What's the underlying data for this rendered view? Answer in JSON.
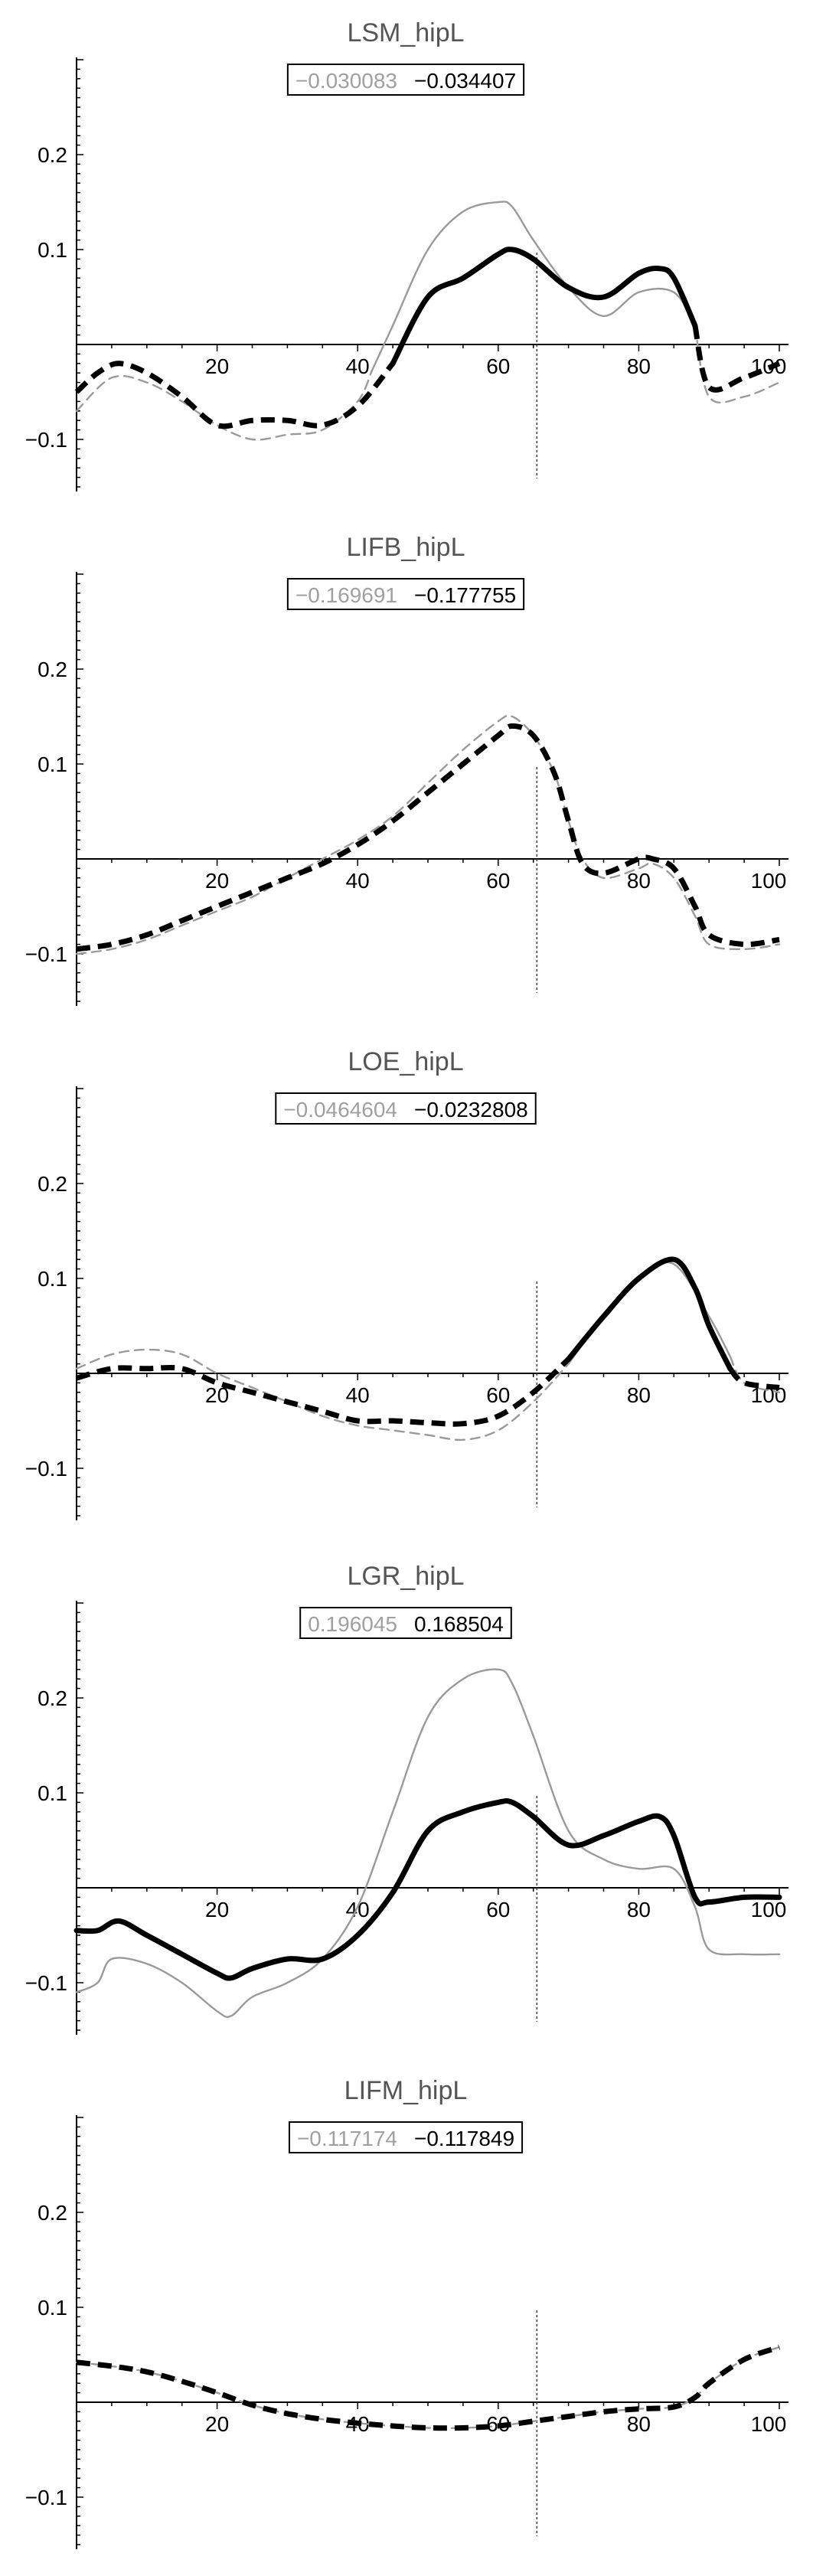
{
  "chart_data": [
    {
      "type": "line",
      "title": "LSM_hipL",
      "readout": {
        "gray": "−0.030083",
        "black": "−0.034407"
      },
      "xlim": [
        0,
        100
      ],
      "ylim": [
        -0.16,
        0.3
      ],
      "xticks": [
        {
          "v": 20,
          "label": "20"
        },
        {
          "v": 40,
          "label": "40"
        },
        {
          "v": 60,
          "label": "60"
        },
        {
          "v": 80,
          "label": "80"
        },
        {
          "v": 100,
          "label": "100"
        }
      ],
      "yticks": [
        {
          "v": 0.2,
          "label": "0.2"
        },
        {
          "v": 0.1,
          "label": "0.1"
        },
        {
          "v": -0.1,
          "label": "−0.1"
        }
      ],
      "cursor_x": 65.5,
      "series": [
        {
          "color": "#9a9a9a",
          "x": [
            0,
            5,
            10,
            15,
            20,
            25,
            30,
            35,
            40,
            45,
            50,
            55,
            60,
            62,
            65,
            70,
            75,
            80,
            85,
            88,
            90,
            95,
            100
          ],
          "y": [
            -0.07,
            -0.035,
            -0.04,
            -0.06,
            -0.085,
            -0.1,
            -0.095,
            -0.09,
            -0.06,
            0.02,
            0.1,
            0.14,
            0.15,
            0.145,
            0.11,
            0.06,
            0.03,
            0.055,
            0.055,
            0.02,
            -0.055,
            -0.055,
            -0.04
          ],
          "segments": [
            {
              "from": 0,
              "to": 42,
              "style": "dashed"
            },
            {
              "from": 42,
              "to": 88,
              "style": "solid"
            },
            {
              "from": 88,
              "to": 100,
              "style": "dashed"
            }
          ]
        },
        {
          "color": "#000000",
          "x": [
            0,
            3,
            6,
            10,
            15,
            20,
            25,
            30,
            35,
            40,
            45,
            50,
            55,
            60,
            62,
            65,
            70,
            75,
            80,
            83,
            85,
            88,
            90,
            95,
            100
          ],
          "y": [
            -0.05,
            -0.03,
            -0.02,
            -0.03,
            -0.055,
            -0.085,
            -0.08,
            -0.08,
            -0.085,
            -0.065,
            -0.02,
            0.05,
            0.07,
            0.095,
            0.1,
            0.09,
            0.06,
            0.05,
            0.075,
            0.08,
            0.07,
            0.02,
            -0.045,
            -0.035,
            -0.02
          ],
          "segments": [
            {
              "from": 0,
              "to": 45,
              "style": "dashed"
            },
            {
              "from": 45,
              "to": 88,
              "style": "solid"
            },
            {
              "from": 88,
              "to": 100,
              "style": "dashed"
            }
          ]
        }
      ]
    },
    {
      "type": "line",
      "title": "LIFB_hipL",
      "readout": {
        "gray": "−0.169691",
        "black": "−0.177755"
      },
      "xlim": [
        0,
        100
      ],
      "ylim": [
        -0.16,
        0.3
      ],
      "xticks": [
        {
          "v": 20,
          "label": "20"
        },
        {
          "v": 40,
          "label": "40"
        },
        {
          "v": 60,
          "label": "60"
        },
        {
          "v": 80,
          "label": "80"
        },
        {
          "v": 100,
          "label": "100"
        }
      ],
      "yticks": [
        {
          "v": 0.2,
          "label": "0.2"
        },
        {
          "v": 0.1,
          "label": "0.1"
        },
        {
          "v": -0.1,
          "label": "−0.1"
        }
      ],
      "cursor_x": 65.5,
      "series": [
        {
          "color": "#9a9a9a",
          "x": [
            0,
            5,
            10,
            15,
            20,
            25,
            30,
            35,
            40,
            45,
            50,
            55,
            60,
            62,
            65,
            68,
            70,
            72,
            75,
            80,
            82,
            85,
            88,
            90,
            95,
            100
          ],
          "y": [
            -0.1,
            -0.095,
            -0.085,
            -0.07,
            -0.055,
            -0.04,
            -0.02,
            0.0,
            0.02,
            0.045,
            0.08,
            0.115,
            0.145,
            0.15,
            0.13,
            0.09,
            0.04,
            0.0,
            -0.02,
            -0.01,
            -0.005,
            -0.02,
            -0.06,
            -0.09,
            -0.095,
            -0.09
          ],
          "segments": [
            {
              "from": 0,
              "to": 100,
              "style": "dashed"
            }
          ]
        },
        {
          "color": "#000000",
          "x": [
            0,
            5,
            10,
            15,
            20,
            25,
            30,
            35,
            40,
            45,
            50,
            55,
            60,
            62,
            65,
            68,
            70,
            72,
            75,
            80,
            82,
            85,
            88,
            90,
            95,
            100
          ],
          "y": [
            -0.095,
            -0.09,
            -0.08,
            -0.065,
            -0.05,
            -0.035,
            -0.02,
            -0.005,
            0.015,
            0.04,
            0.07,
            0.1,
            0.13,
            0.14,
            0.13,
            0.09,
            0.04,
            -0.005,
            -0.015,
            0.0,
            0.0,
            -0.01,
            -0.05,
            -0.08,
            -0.09,
            -0.085
          ],
          "segments": [
            {
              "from": 0,
              "to": 100,
              "style": "dashed"
            }
          ]
        }
      ]
    },
    {
      "type": "line",
      "title": "LOE_hipL",
      "readout": {
        "gray": "−0.0464604",
        "black": "−0.0232808"
      },
      "xlim": [
        0,
        100
      ],
      "ylim": [
        -0.16,
        0.3
      ],
      "xticks": [
        {
          "v": 20,
          "label": "20"
        },
        {
          "v": 40,
          "label": "40"
        },
        {
          "v": 60,
          "label": "60"
        },
        {
          "v": 80,
          "label": "80"
        },
        {
          "v": 100,
          "label": "100"
        }
      ],
      "yticks": [
        {
          "v": 0.2,
          "label": "0.2"
        },
        {
          "v": 0.1,
          "label": "0.1"
        },
        {
          "v": -0.1,
          "label": "−0.1"
        }
      ],
      "cursor_x": 65.5,
      "series": [
        {
          "color": "#9a9a9a",
          "x": [
            0,
            5,
            10,
            15,
            20,
            25,
            30,
            35,
            40,
            45,
            50,
            55,
            60,
            65,
            70,
            75,
            80,
            85,
            90,
            95,
            100
          ],
          "y": [
            0.005,
            0.02,
            0.025,
            0.02,
            0.0,
            -0.015,
            -0.03,
            -0.045,
            -0.055,
            -0.06,
            -0.065,
            -0.07,
            -0.06,
            -0.03,
            0.01,
            0.06,
            0.1,
            0.115,
            0.06,
            -0.01,
            -0.02
          ],
          "segments": [
            {
              "from": 0,
              "to": 70,
              "style": "dashed"
            },
            {
              "from": 70,
              "to": 93,
              "style": "solid"
            },
            {
              "from": 93,
              "to": 100,
              "style": "dashed"
            }
          ]
        },
        {
          "color": "#000000",
          "x": [
            0,
            5,
            10,
            15,
            20,
            25,
            30,
            35,
            40,
            45,
            50,
            55,
            60,
            65,
            70,
            75,
            80,
            85,
            88,
            90,
            93,
            95,
            100
          ],
          "y": [
            -0.005,
            0.005,
            0.005,
            0.005,
            -0.01,
            -0.02,
            -0.03,
            -0.04,
            -0.05,
            -0.05,
            -0.052,
            -0.053,
            -0.045,
            -0.02,
            0.015,
            0.06,
            0.1,
            0.12,
            0.09,
            0.05,
            0.005,
            -0.01,
            -0.015
          ],
          "segments": [
            {
              "from": 0,
              "to": 70,
              "style": "dashed"
            },
            {
              "from": 70,
              "to": 93,
              "style": "solid"
            },
            {
              "from": 93,
              "to": 100,
              "style": "dashed"
            }
          ]
        }
      ]
    },
    {
      "type": "line",
      "title": "LGR_hipL",
      "readout": {
        "gray": "0.196045",
        "black": "0.168504"
      },
      "xlim": [
        0,
        100
      ],
      "ylim": [
        -0.16,
        0.3
      ],
      "xticks": [
        {
          "v": 20,
          "label": "20"
        },
        {
          "v": 40,
          "label": "40"
        },
        {
          "v": 60,
          "label": "60"
        },
        {
          "v": 80,
          "label": "80"
        },
        {
          "v": 100,
          "label": "100"
        }
      ],
      "yticks": [
        {
          "v": 0.2,
          "label": "0.2"
        },
        {
          "v": 0.1,
          "label": "0.1"
        },
        {
          "v": -0.1,
          "label": "−0.1"
        }
      ],
      "cursor_x": 65.5,
      "series": [
        {
          "color": "#9a9a9a",
          "x": [
            0,
            3,
            5,
            10,
            15,
            20,
            22,
            25,
            30,
            35,
            40,
            45,
            50,
            55,
            60,
            62,
            65,
            70,
            75,
            80,
            85,
            88,
            90,
            95,
            100
          ],
          "y": [
            -0.11,
            -0.1,
            -0.075,
            -0.08,
            -0.1,
            -0.13,
            -0.135,
            -0.115,
            -0.1,
            -0.075,
            -0.02,
            0.08,
            0.18,
            0.22,
            0.23,
            0.215,
            0.16,
            0.06,
            0.03,
            0.02,
            0.02,
            -0.02,
            -0.065,
            -0.07,
            -0.07
          ],
          "segments": [
            {
              "from": 0,
              "to": 100,
              "style": "solid"
            }
          ]
        },
        {
          "color": "#000000",
          "x": [
            0,
            3,
            6,
            10,
            15,
            20,
            22,
            25,
            30,
            35,
            40,
            45,
            50,
            55,
            60,
            62,
            65,
            70,
            75,
            80,
            83,
            85,
            88,
            90,
            95,
            100
          ],
          "y": [
            -0.045,
            -0.045,
            -0.035,
            -0.05,
            -0.07,
            -0.09,
            -0.095,
            -0.085,
            -0.075,
            -0.075,
            -0.05,
            -0.005,
            0.06,
            0.08,
            0.09,
            0.09,
            0.075,
            0.045,
            0.055,
            0.07,
            0.075,
            0.055,
            -0.01,
            -0.015,
            -0.01,
            -0.01
          ],
          "segments": [
            {
              "from": 0,
              "to": 100,
              "style": "solid"
            }
          ]
        }
      ]
    },
    {
      "type": "line",
      "title": "LIFM_hipL",
      "readout": {
        "gray": "−0.117174",
        "black": "−0.117849"
      },
      "xlim": [
        0,
        100
      ],
      "ylim": [
        -0.16,
        0.3
      ],
      "xticks": [
        {
          "v": 20,
          "label": "20"
        },
        {
          "v": 40,
          "label": "40"
        },
        {
          "v": 60,
          "label": "60"
        },
        {
          "v": 80,
          "label": "80"
        },
        {
          "v": 100,
          "label": "100"
        }
      ],
      "yticks": [
        {
          "v": 0.2,
          "label": "0.2"
        },
        {
          "v": 0.1,
          "label": "0.1"
        },
        {
          "v": -0.1,
          "label": "−0.1"
        }
      ],
      "cursor_x": 65.5,
      "series": [
        {
          "color": "#9a9a9a",
          "x": [
            0,
            5,
            10,
            15,
            20,
            25,
            30,
            35,
            40,
            45,
            50,
            55,
            60,
            65,
            70,
            75,
            80,
            85,
            88,
            90,
            95,
            100
          ],
          "y": [
            0.042,
            0.038,
            0.032,
            0.022,
            0.01,
            -0.003,
            -0.012,
            -0.018,
            -0.022,
            -0.025,
            -0.027,
            -0.027,
            -0.025,
            -0.02,
            -0.015,
            -0.01,
            -0.007,
            -0.005,
            0.005,
            0.02,
            0.045,
            0.058
          ],
          "segments": [
            {
              "from": 0,
              "to": 100,
              "style": "dashed"
            }
          ]
        },
        {
          "color": "#000000",
          "x": [
            0,
            5,
            10,
            15,
            20,
            25,
            30,
            35,
            40,
            45,
            50,
            55,
            60,
            65,
            70,
            75,
            80,
            85,
            88,
            90,
            95,
            100
          ],
          "y": [
            0.042,
            0.038,
            0.032,
            0.022,
            0.01,
            -0.003,
            -0.012,
            -0.018,
            -0.022,
            -0.025,
            -0.027,
            -0.027,
            -0.025,
            -0.02,
            -0.015,
            -0.01,
            -0.007,
            -0.005,
            0.005,
            0.02,
            0.045,
            0.058
          ],
          "segments": [
            {
              "from": 0,
              "to": 100,
              "style": "dashed"
            }
          ]
        }
      ]
    }
  ]
}
